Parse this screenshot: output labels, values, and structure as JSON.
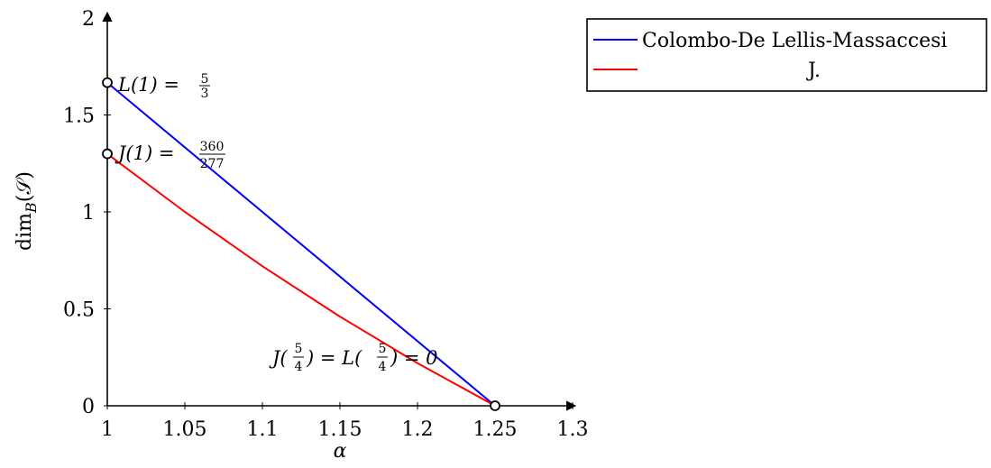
{
  "chart_data": {
    "type": "line",
    "xlabel": "α",
    "ylabel": "dim",
    "ylabel_sub": "B",
    "ylabel_arg": "(𝒮)",
    "xlim": [
      1,
      1.3
    ],
    "ylim": [
      0,
      2
    ],
    "xticks": [
      {
        "value": 1,
        "label": "1"
      },
      {
        "value": 1.05,
        "label": "1.05"
      },
      {
        "value": 1.1,
        "label": "1.1"
      },
      {
        "value": 1.15,
        "label": "1.15"
      },
      {
        "value": 1.2,
        "label": "1.2"
      },
      {
        "value": 1.25,
        "label": "1.25"
      },
      {
        "value": 1.3,
        "label": "1.3"
      }
    ],
    "yticks": [
      {
        "value": 0,
        "label": "0"
      },
      {
        "value": 0.5,
        "label": "0.5"
      },
      {
        "value": 1,
        "label": "1"
      },
      {
        "value": 1.5,
        "label": "1.5"
      },
      {
        "value": 2,
        "label": "2"
      }
    ],
    "grid": false,
    "legend_position": "top-right",
    "series": [
      {
        "name": "Colombo-De Lellis-Massaccesi",
        "color": "#0000ff",
        "x": [
          1,
          1.25
        ],
        "y": [
          1.6667,
          0
        ]
      },
      {
        "name": "J.",
        "color": "#ff0000",
        "x": [
          1,
          1.05,
          1.1,
          1.15,
          1.2,
          1.25
        ],
        "y": [
          1.2996,
          1.0,
          0.72,
          0.46,
          0.22,
          0
        ]
      }
    ],
    "markers": [
      {
        "x": 1,
        "y": 1.6667
      },
      {
        "x": 1,
        "y": 1.2996
      },
      {
        "x": 1.25,
        "y": 0
      }
    ],
    "annotations": {
      "L1": {
        "prefix": "L(1) = ",
        "num": "5",
        "den": "3"
      },
      "J1": {
        "prefix": "J(1) = ",
        "num": "360",
        "den": "277"
      },
      "J54": {
        "j_prefix": "J(",
        "num": "5",
        "den": "4",
        "l_prefix": ") = L(",
        "suffix": ") = 0"
      }
    }
  }
}
